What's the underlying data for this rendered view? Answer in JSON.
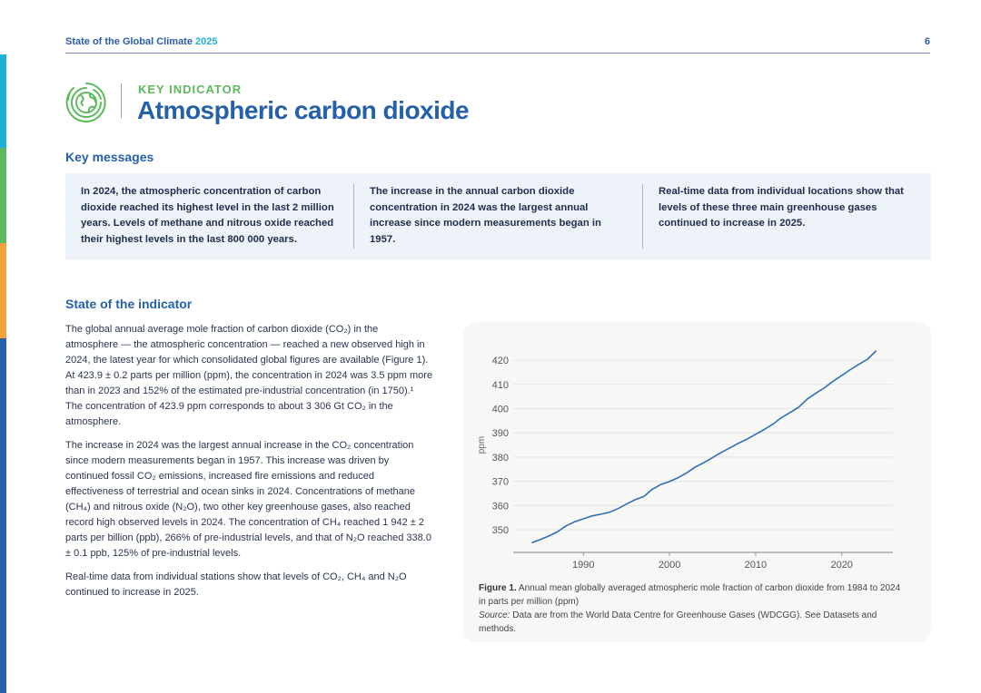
{
  "header": {
    "title": "State of the Global Climate",
    "year": "2025",
    "page": "6"
  },
  "side_bar_colors": [
    "#1fb0d8",
    "#5cba5c",
    "#f2a23a",
    "#2560aa"
  ],
  "indicator": {
    "kicker": "KEY INDICATOR",
    "title": "Atmospheric carbon dioxide",
    "icon": "globe-icon"
  },
  "key_messages": {
    "heading": "Key messages",
    "items": [
      "In 2024, the atmospheric concentration of carbon dioxide reached its highest level in the last 2 million years. Levels of methane and nitrous oxide reached their highest levels in the last 800 000 years.",
      "The increase in the annual carbon dioxide concentration in 2024 was the largest annual increase since modern measurements began in 1957.",
      "Real-time data from individual locations show that levels of these three main greenhouse gases continued to increase in 2025."
    ]
  },
  "state": {
    "heading": "State of the indicator",
    "paragraphs": [
      "The global annual average mole fraction of carbon dioxide (CO₂) in the atmosphere — the atmospheric concentration — reached a new observed high in 2024, the latest year for which consolidated global figures are available (Figure 1). At 423.9 ± 0.2 parts per million (ppm), the concentration in 2024 was 3.5 ppm more than in 2023 and 152% of the estimated pre-industrial concentration (in 1750).¹ The concentration of 423.9 ppm corresponds to about 3 306 Gt CO₂ in the atmosphere.",
      "The increase in 2024 was the largest annual increase in the CO₂ concentration since modern measurements began in 1957. This increase was driven by continued fossil CO₂ emissions, increased fire emissions and reduced effectiveness of terrestrial and ocean sinks in 2024. Concentrations of methane (CH₄) and nitrous oxide (N₂O), two other key greenhouse gases, also reached record high observed levels in 2024. The concentration of CH₄ reached 1 942 ± 2 parts per billion (ppb), 266% of pre-industrial levels, and that of N₂O reached 338.0 ± 0.1 ppb, 125% of pre-industrial levels.",
      "Real-time data from individual stations show that levels of CO₂, CH₄ and N₂O continued to increase in 2025."
    ]
  },
  "figure": {
    "label": "Figure 1.",
    "caption": " Annual mean globally averaged atmospheric mole fraction of carbon dioxide from 1984 to 2024 in parts per million (ppm)",
    "source_label": "Source:",
    "source": " Data are from the World Data Centre for Greenhouse Gases (WDCGG). See Datasets and methods."
  },
  "chart_data": {
    "type": "line",
    "title": "",
    "xlabel": "",
    "ylabel": "ppm",
    "xlim": [
      1981.5,
      2026
    ],
    "ylim": [
      340,
      424
    ],
    "xticks": [
      1990,
      2000,
      2010,
      2020
    ],
    "yticks": [
      350,
      360,
      370,
      380,
      390,
      400,
      410,
      420
    ],
    "grid": "horizontal",
    "line_color": "#2f6fba",
    "x": [
      1984,
      1985,
      1986,
      1987,
      1988,
      1989,
      1990,
      1991,
      1992,
      1993,
      1994,
      1995,
      1996,
      1997,
      1998,
      1999,
      2000,
      2001,
      2002,
      2003,
      2004,
      2005,
      2006,
      2007,
      2008,
      2009,
      2010,
      2011,
      2012,
      2013,
      2014,
      2015,
      2016,
      2017,
      2018,
      2019,
      2020,
      2021,
      2022,
      2023,
      2024
    ],
    "series": [
      {
        "name": "CO2",
        "values": [
          344.6,
          346.0,
          347.4,
          349.2,
          351.6,
          353.3,
          354.5,
          355.7,
          356.4,
          357.2,
          358.7,
          360.6,
          362.4,
          363.7,
          366.7,
          368.7,
          369.9,
          371.5,
          373.5,
          375.9,
          377.7,
          379.8,
          381.9,
          383.8,
          385.7,
          387.4,
          389.4,
          391.4,
          393.6,
          396.3,
          398.4,
          400.6,
          404.0,
          406.4,
          408.6,
          411.3,
          413.7,
          416.1,
          418.3,
          420.4,
          423.9
        ]
      }
    ]
  }
}
